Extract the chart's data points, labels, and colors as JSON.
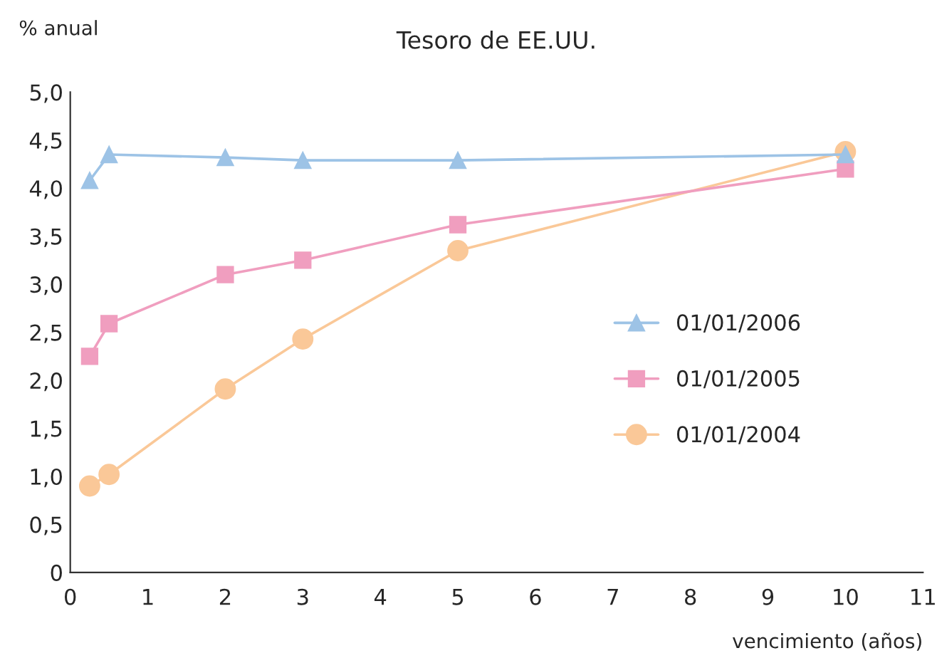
{
  "chart_data": {
    "type": "line",
    "title": "Tesoro de EE.UU.",
    "xlabel": "vencimiento (años)",
    "ylabel": "% anual",
    "x": [
      0.25,
      0.5,
      2,
      3,
      5,
      10
    ],
    "series": [
      {
        "name": "01/01/2006",
        "color": "#9dc3e6",
        "marker": "triangle",
        "values": [
          4.08,
          4.35,
          4.32,
          4.29,
          4.29,
          4.35
        ]
      },
      {
        "name": "01/01/2005",
        "color": "#f09ebf",
        "marker": "square",
        "values": [
          2.25,
          2.59,
          3.1,
          3.25,
          3.62,
          4.2
        ]
      },
      {
        "name": "01/01/2004",
        "color": "#fac898",
        "marker": "circle",
        "values": [
          0.9,
          1.02,
          1.91,
          2.43,
          3.35,
          4.38
        ]
      }
    ],
    "xlim": [
      0,
      11
    ],
    "xticks": [
      0,
      1,
      2,
      3,
      4,
      5,
      6,
      7,
      8,
      9,
      10,
      11
    ],
    "ylim": [
      0,
      5
    ],
    "yticks": [
      {
        "value": 0,
        "label": "0"
      },
      {
        "value": 0.5,
        "label": "0,5"
      },
      {
        "value": 1,
        "label": "1,0"
      },
      {
        "value": 1.5,
        "label": "1,5"
      },
      {
        "value": 2,
        "label": "2,0"
      },
      {
        "value": 2.5,
        "label": "2,5"
      },
      {
        "value": 3,
        "label": "3,0"
      },
      {
        "value": 3.5,
        "label": "3,5"
      },
      {
        "value": 4,
        "label": "4,0"
      },
      {
        "value": 4.5,
        "label": "4,5"
      },
      {
        "value": 5,
        "label": "5,0"
      }
    ],
    "grid": false,
    "legend": "center right"
  }
}
